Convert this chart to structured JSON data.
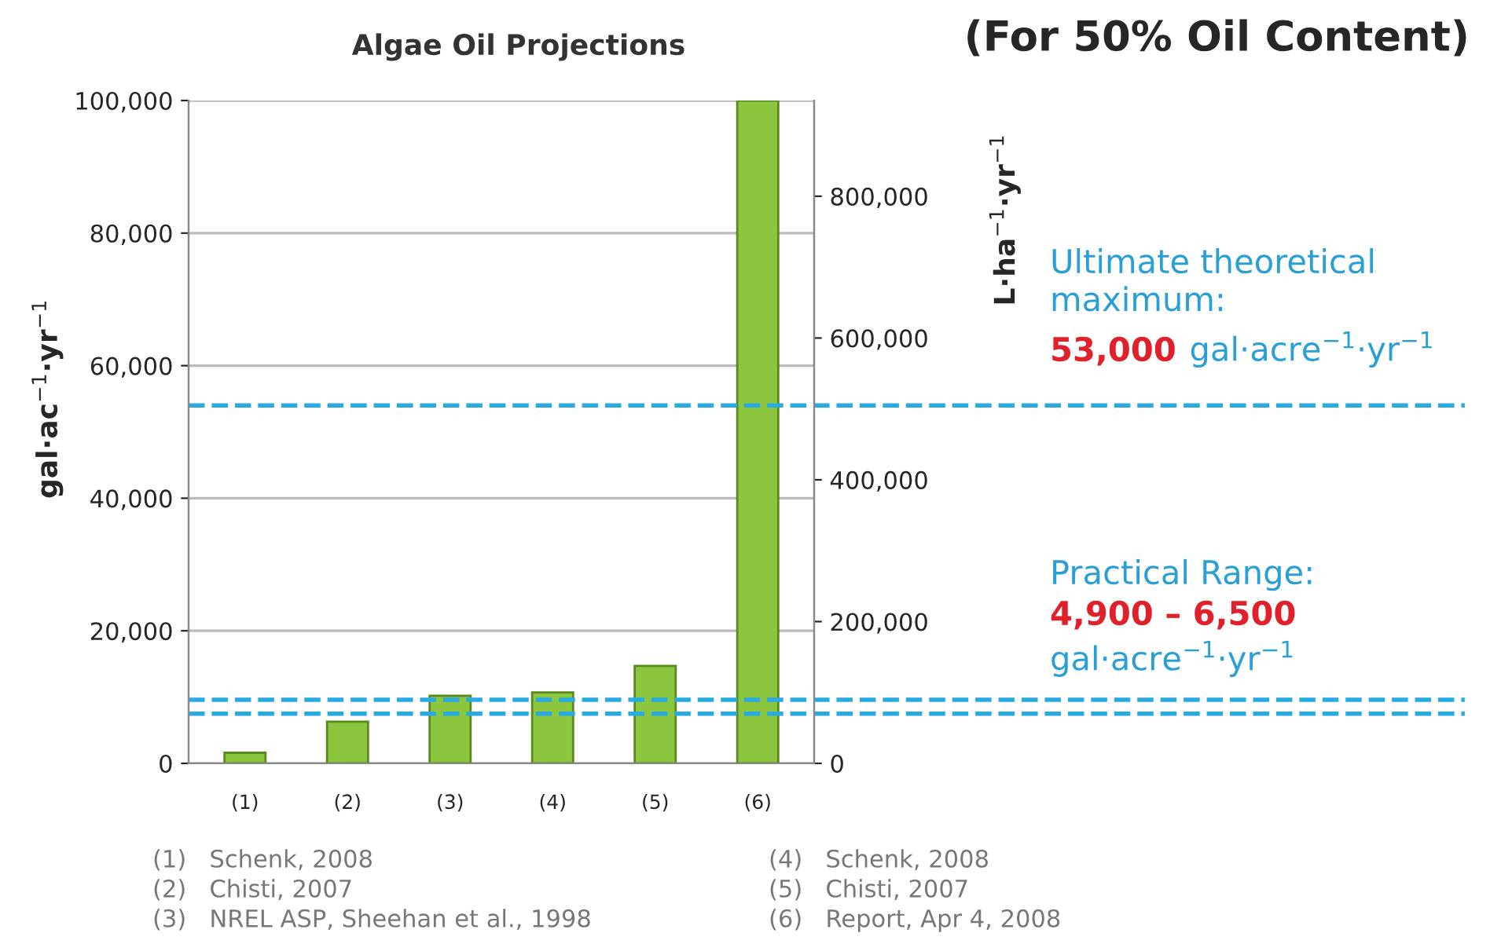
{
  "chart_data": {
    "type": "bar",
    "title": "Algae Oil Projections",
    "subtitle": "(For 50% Oil Content)",
    "ylabel": "gal·ac$^{−1}$·yr$^{−1}$",
    "y2label": "L·ha$^{−1}$·yr$^{−1}$",
    "categories": [
      "(1)",
      "(2)",
      "(3)",
      "(4)",
      "(5)",
      "(6)"
    ],
    "series": [
      {
        "color": "#8cc63f",
        "values": [
          1600,
          6300,
          10200,
          10700,
          14700,
          100000
        ]
      }
    ],
    "ylim": [
      0,
      100000
    ],
    "yticks": [
      {
        "value": 0,
        "label": "0"
      },
      {
        "value": 20000,
        "label": "20,000"
      },
      {
        "value": 40000,
        "label": "40,000"
      },
      {
        "value": 60000,
        "label": "60,000"
      },
      {
        "value": 80000,
        "label": "80,000"
      },
      {
        "value": 100000,
        "label": "100,000"
      }
    ],
    "y2lim": [
      0,
      935000
    ],
    "y2ticks": [
      {
        "value": 0,
        "label": "0"
      },
      {
        "value": 200000,
        "label": "200,000"
      },
      {
        "value": 400000,
        "label": "400,000"
      },
      {
        "value": 600000,
        "label": "600,000"
      },
      {
        "value": 800000,
        "label": "800,000"
      }
    ],
    "grid": "y",
    "ref_lines": [
      {
        "axis": "y",
        "value": 54000,
        "color": "#29abe2",
        "line_style": "dashed"
      },
      {
        "axis": "y",
        "value": 9600,
        "color": "#29abe2",
        "line_style": "dashed"
      },
      {
        "axis": "y",
        "value": 7500,
        "color": "#29abe2",
        "line_style": "dashed"
      }
    ],
    "annotations": [
      "(1)   Schenk, 2008",
      "(2)   Chisti, 2007",
      "(3)   NREL ASP, Sheehan et al., 1998",
      "(4)   Schenk, 2008",
      "(5)   Chisti, 2007",
      "(6)   Report, Apr 4, 2008",
      "Ultimate theoretical\nmaximum:",
      "53,000",
      "gal·acre$^{−1}$·yr$^{−1}$",
      "Practical Range:",
      "4,900 – 6,500",
      "gal·acre$^{−1}$·yr$^{−1}$"
    ]
  }
}
